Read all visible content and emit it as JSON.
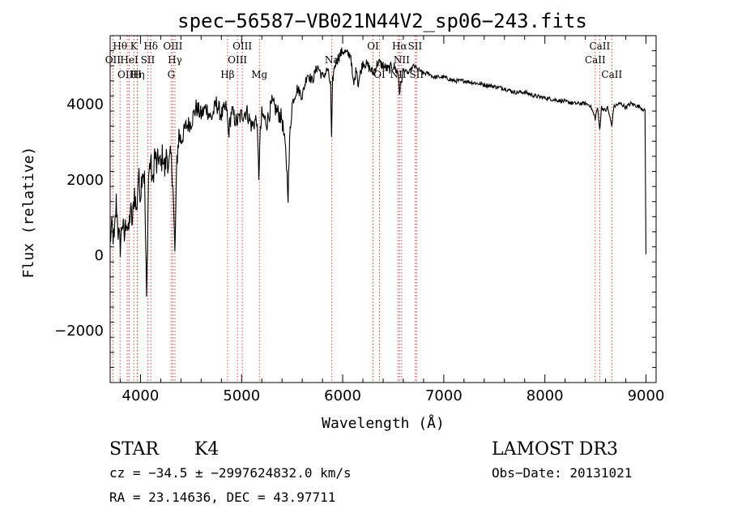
{
  "chart_data": {
    "type": "line",
    "title": "spec−56587−VB021N44V2_sp06−243.fits",
    "xlabel": "Wavelength (Å)",
    "ylabel": "Flux (relative)",
    "xlim": [
      3700,
      9100
    ],
    "ylim": [
      -3400,
      5800
    ],
    "xticks": [
      4000,
      5000,
      6000,
      7000,
      8000,
      9000
    ],
    "xtick_labels": [
      "4000",
      "5000",
      "6000",
      "7000",
      "8000",
      "9000"
    ],
    "yticks": [
      -2000,
      0,
      2000,
      4000
    ],
    "ytick_labels": [
      "−2000",
      "0",
      "2000",
      "4000"
    ],
    "grid": false,
    "series": [
      {
        "name": "flux",
        "x": [
          3700,
          3720,
          3740,
          3760,
          3780,
          3800,
          3820,
          3840,
          3860,
          3880,
          3900,
          3920,
          3940,
          3960,
          3980,
          4000,
          4020,
          4040,
          4060,
          4080,
          4100,
          4120,
          4140,
          4160,
          4180,
          4200,
          4220,
          4240,
          4260,
          4280,
          4300,
          4320,
          4340,
          4360,
          4380,
          4400,
          4450,
          4500,
          4550,
          4600,
          4650,
          4700,
          4750,
          4800,
          4850,
          4870,
          4900,
          4950,
          5000,
          5050,
          5100,
          5150,
          5170,
          5185,
          5200,
          5250,
          5300,
          5350,
          5400,
          5440,
          5460,
          5480,
          5500,
          5550,
          5600,
          5650,
          5700,
          5750,
          5800,
          5850,
          5880,
          5890,
          5900,
          5920,
          5950,
          6000,
          6050,
          6080,
          6100,
          6110,
          6140,
          6150,
          6200,
          6250,
          6300,
          6350,
          6400,
          6450,
          6500,
          6550,
          6562,
          6600,
          6650,
          6700,
          6750,
          6800,
          6850,
          6900,
          7000,
          7100,
          7200,
          7300,
          7400,
          7500,
          7600,
          7700,
          7800,
          7900,
          8000,
          8100,
          8200,
          8300,
          8400,
          8450,
          8498,
          8520,
          8542,
          8560,
          8600,
          8620,
          8662,
          8680,
          8700,
          8750,
          8800,
          8850,
          8900,
          8950,
          8990,
          9000
        ],
        "values": [
          400,
          700,
          300,
          1400,
          600,
          200,
          900,
          400,
          1000,
          500,
          1200,
          800,
          1700,
          1100,
          2100,
          1600,
          2300,
          2000,
          -1200,
          2100,
          2500,
          1800,
          2700,
          2300,
          2600,
          2300,
          2700,
          2200,
          2700,
          2300,
          2600,
          2000,
          -50,
          2500,
          3200,
          3000,
          3400,
          3500,
          3900,
          3700,
          3900,
          3600,
          4000,
          3700,
          3900,
          3200,
          3800,
          3500,
          3700,
          3800,
          3400,
          3600,
          2100,
          3200,
          3700,
          3500,
          4000,
          3800,
          3600,
          2600,
          1600,
          3300,
          4000,
          4400,
          4200,
          4800,
          4600,
          5000,
          4700,
          4900,
          4500,
          3000,
          4600,
          5000,
          5200,
          5400,
          5300,
          5300,
          4600,
          4500,
          5000,
          4500,
          5100,
          5000,
          4800,
          5100,
          5000,
          4900,
          5000,
          4800,
          4300,
          4900,
          4800,
          5000,
          4900,
          4800,
          4800,
          4700,
          4700,
          4600,
          4600,
          4550,
          4500,
          4450,
          4400,
          4300,
          4300,
          4200,
          4150,
          4100,
          4050,
          4000,
          4000,
          3950,
          3600,
          3900,
          3300,
          3900,
          3800,
          3900,
          3400,
          3900,
          3950,
          4000,
          3900,
          4000,
          3950,
          3900,
          3800,
          0
        ]
      }
    ],
    "emission_lines": [
      {
        "label": "OII",
        "x": 3727,
        "row": 1
      },
      {
        "label": "Hθ",
        "x": 3798,
        "row": 0
      },
      {
        "label": "OIII",
        "x": 3869,
        "row": 2
      },
      {
        "label": "HeI",
        "x": 3889,
        "row": 1
      },
      {
        "label": "K",
        "x": 3934,
        "row": 0
      },
      {
        "label": "Hη",
        "x": 3970,
        "row": 2
      },
      {
        "label": "H",
        "x": 3969,
        "row": 2
      },
      {
        "label": "SII",
        "x": 4072,
        "row": 1
      },
      {
        "label": "Hδ",
        "x": 4102,
        "row": 0
      },
      {
        "label": "G",
        "x": 4304,
        "row": 2
      },
      {
        "label": "OIII",
        "x": 4320,
        "row": 0
      },
      {
        "label": "Hγ",
        "x": 4341,
        "row": 1
      },
      {
        "label": "Hβ",
        "x": 4861,
        "row": 2
      },
      {
        "label": "OIII",
        "x": 4959,
        "row": 1
      },
      {
        "label": "OIII",
        "x": 5007,
        "row": 0
      },
      {
        "label": "Mg",
        "x": 5176,
        "row": 2
      },
      {
        "label": "Na",
        "x": 5893,
        "row": 1
      },
      {
        "label": "OI",
        "x": 6300,
        "row": 0
      },
      {
        "label": "OI",
        "x": 6364,
        "row": 2
      },
      {
        "label": "NII",
        "x": 6548,
        "row": 2
      },
      {
        "label": "Hα",
        "x": 6563,
        "row": 0
      },
      {
        "label": "NII",
        "x": 6583,
        "row": 1
      },
      {
        "label": "SII",
        "x": 6716,
        "row": 0
      },
      {
        "label": "SII",
        "x": 6731,
        "row": 2
      },
      {
        "label": "CaII",
        "x": 8498,
        "row": 1
      },
      {
        "label": "CaII",
        "x": 8542,
        "row": 0
      },
      {
        "label": "CaII",
        "x": 8662,
        "row": 2
      }
    ]
  },
  "info": {
    "class": "STAR",
    "subclass": "K4",
    "survey": "LAMOST DR3",
    "cz": "cz = −34.5 ± −2997624832.0 km/s",
    "obs_date": "Obs−Date: 20131021",
    "radec": "RA =  23.14636, DEC =  43.97711"
  }
}
